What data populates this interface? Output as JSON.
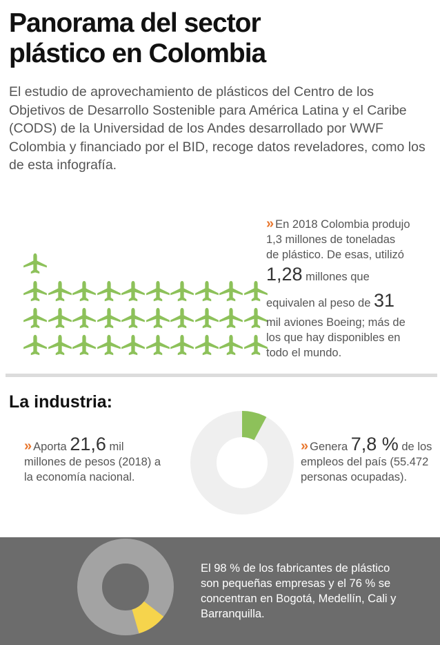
{
  "header": {
    "title_line1": "Panorama del sector",
    "title_line2": "plástico en Colombia",
    "intro": "El estudio de aprovechamiento de plásticos del Centro de los Objetivos de Desarrollo Sostenible para América Latina y el Caribe (CODS) de la Universidad de los Andes desarrollado por WWF Colombia y financiado por el BID, recoge datos reveladores, como los de esta infografía."
  },
  "production": {
    "bullet": "»",
    "line1": "En 2018 Colombia produjo",
    "line2": "1,3 millones de toneladas",
    "line3": "de plástico. De esas, utilizó",
    "used_value": "1,28",
    "used_suffix": " millones que",
    "line5_prefix": "equivalen al peso de ",
    "planes_value": "31",
    "line6": "mil aviones Boeing; más de",
    "line7": "los que hay disponibles en",
    "line8": "todo el mundo.",
    "airplane_icon": "airplane-icon",
    "airplane_count": 31,
    "airplane_color": "#8dc15a"
  },
  "industry": {
    "title": "La industria:",
    "contribution": {
      "bullet": "»",
      "prefix": "Aporta ",
      "value": "21,6",
      "suffix": " mil",
      "rest": "millones de pesos (2018) a la economía nacional."
    },
    "employment": {
      "bullet": "»",
      "prefix": "Genera ",
      "value": "7,8 %",
      "suffix": " de",
      "rest": "los empleos del país (55.472 personas ocupadas)."
    },
    "employment_share": 0.078,
    "donut_colors": {
      "highlight": "#8dc15a",
      "rest": "#efefef"
    }
  },
  "manufacturers": {
    "text": "El 98 % de los fabricantes de plástico son pequeñas empresas y el 76 % se concentran en Bogotá, Medellín, Cali y Barranquilla.",
    "highlight_share": 0.1,
    "donut_colors": {
      "highlight": "#f6d44c",
      "rest": "#a3a3a3"
    },
    "band_color": "#6c6c6c"
  },
  "colors": {
    "bullet": "#e8762d",
    "divider": "#dcdcdc"
  }
}
